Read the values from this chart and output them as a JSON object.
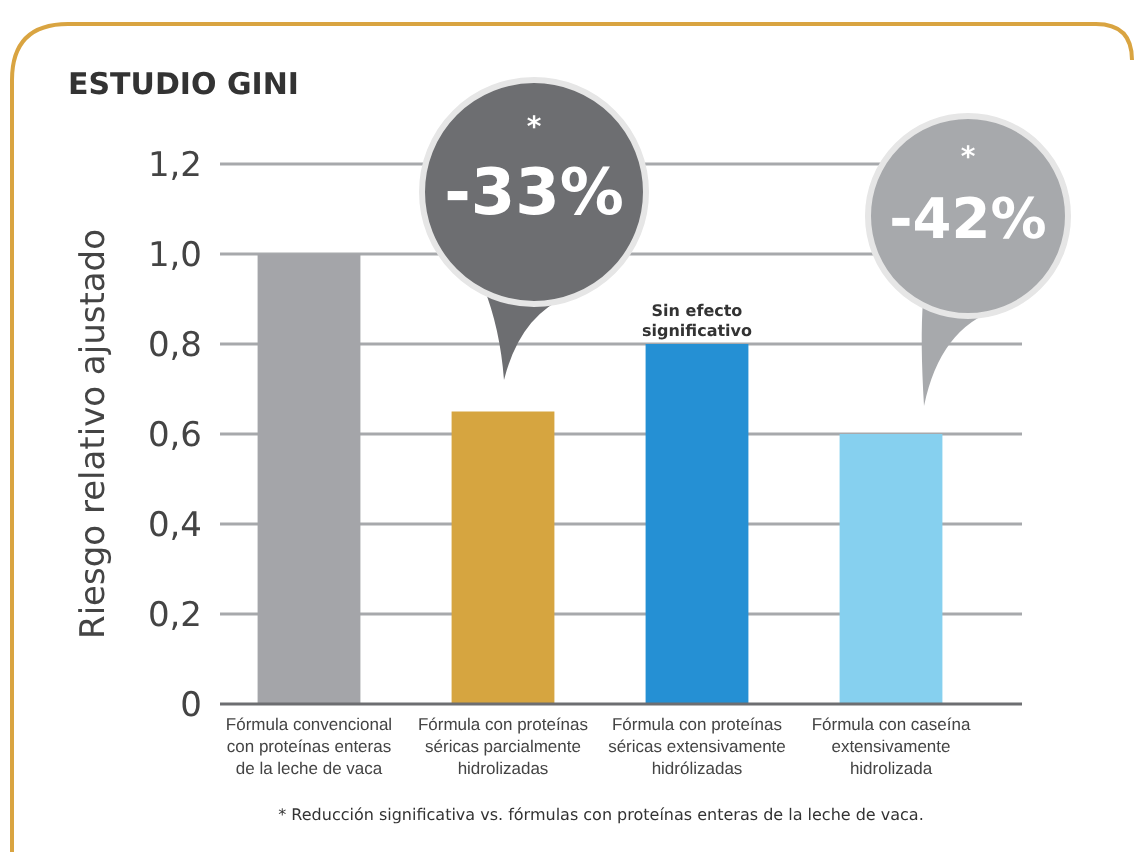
{
  "chart_data": {
    "type": "bar",
    "title": "ESTUDIO GINI",
    "ylabel": "Riesgo relativo ajustado",
    "categories": [
      "Fórmula convencional\ncon proteínas enteras\nde la leche de vaca",
      "Fórmula con proteínas\nséricas parcialmente\nhidrolizadas",
      "Fórmula con proteínas\nséricas extensivamente\nhidrólizadas",
      "Fórmula con caseína\nextensivamente\nhidrolizada"
    ],
    "values": [
      1.0,
      0.65,
      0.8,
      0.6
    ],
    "colors": [
      "#a4a5a9",
      "#d6a540",
      "#2590d4",
      "#86d0ef"
    ],
    "ylim": [
      0,
      1.2
    ],
    "yticks": [
      0,
      {
        "value": 0.2,
        "label": "0,2"
      },
      {
        "value": 0.4,
        "label": "0,4"
      },
      {
        "value": 0.6,
        "label": "0,6"
      },
      {
        "value": 0.8,
        "label": "0,8"
      },
      {
        "value": 1.0,
        "label": "1,0"
      },
      {
        "value": 1.2,
        "label": "1,2"
      }
    ],
    "grid": "y",
    "annotations": [
      "*\n-33%",
      {
        "text": "Sin efecto\nsignificativo",
        "x": "Fórmula con proteínas\nséricas extensivamente\nhidrólizadas",
        "y": 0.8
      },
      "*\n-42%",
      "* Reducción significativa vs. fórmulas con proteínas enteras de la leche de vaca."
    ]
  }
}
